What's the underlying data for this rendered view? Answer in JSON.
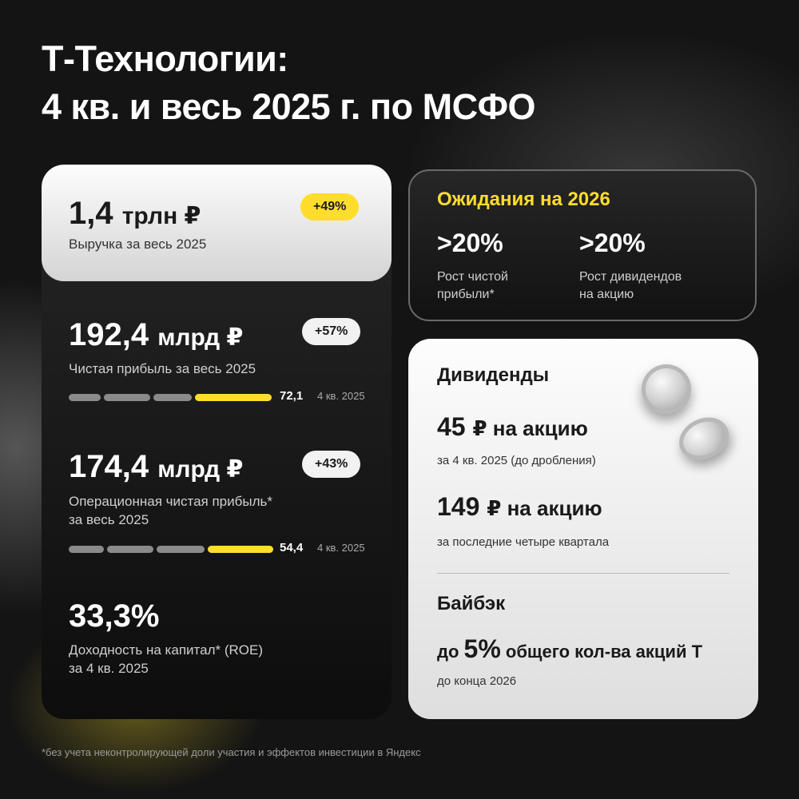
{
  "title": {
    "line1": "Т-Технологии:",
    "line2": "4 кв. и весь 2025 г. по МСФО"
  },
  "revenue": {
    "value": "1,4",
    "unit": "трлн ₽",
    "label": "Выручка за весь 2025",
    "change": "+49%"
  },
  "net_profit": {
    "value": "192,4",
    "unit": "млрд ₽",
    "label": "Чистая прибыль за весь 2025",
    "change": "+57%",
    "q_value": "72,1",
    "q_label": "4 кв. 2025"
  },
  "op_profit": {
    "value": "174,4",
    "unit": "млрд ₽",
    "label_line1": "Операционная чистая прибыль*",
    "label_line2": "за весь 2025",
    "change": "+43%",
    "q_value": "54,4",
    "q_label": "4 кв. 2025"
  },
  "roe": {
    "value": "33,3%",
    "label_line1": "Доходность на капитал* (ROE)",
    "label_line2": "за 4 кв. 2025"
  },
  "expectations": {
    "title": "Ожидания на 2026",
    "items": [
      {
        "value": ">20%",
        "label_line1": "Рост чистой",
        "label_line2": "прибыли*"
      },
      {
        "value": ">20%",
        "label_line1": "Рост дивидендов",
        "label_line2": "на акцию"
      }
    ]
  },
  "dividends": {
    "title": "Дивиденды",
    "q_value": "45",
    "q_unit": "₽ на акцию",
    "q_label": "за 4 кв. 2025 (до дробления)",
    "ttm_value": "149",
    "ttm_unit": "₽ на акцию",
    "ttm_label": "за последние четыре квартала"
  },
  "buyback": {
    "title": "Байбэк",
    "prefix": "до",
    "value": "5%",
    "suffix": "общего кол-ва акций Т",
    "label": "до конца 2026"
  },
  "footnote": "*без учета неконтролирующей доли участия и эффектов инвестиции в Яндекс",
  "colors": {
    "accent": "#ffdd2d",
    "background": "#141414",
    "card_light": "#f2f2f2"
  },
  "icons": [
    "coin-icon",
    "coin-icon"
  ]
}
